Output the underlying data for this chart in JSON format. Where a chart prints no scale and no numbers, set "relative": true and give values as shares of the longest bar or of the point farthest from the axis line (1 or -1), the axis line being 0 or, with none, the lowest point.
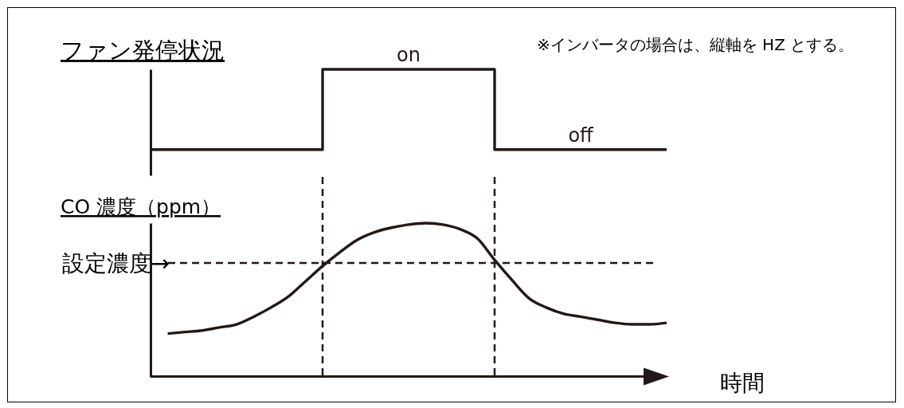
{
  "chart_data": [
    {
      "type": "step",
      "title": "ファン発停状況",
      "categories": [
        null,
        null,
        null,
        null,
        null,
        null,
        null,
        null,
        null,
        null,
        null,
        null,
        null,
        null,
        null,
        null,
        null,
        null,
        null,
        null,
        null,
        null,
        null,
        null,
        null,
        null,
        null,
        null,
        null,
        null,
        null
      ],
      "series": [
        {
          "color": "#231815",
          "values": [
            0,
            0,
            0,
            0,
            0,
            0,
            0,
            0,
            0,
            0,
            1,
            1,
            1,
            1,
            1,
            1,
            1,
            1,
            1,
            1,
            0,
            0,
            0,
            0,
            0,
            0,
            0,
            0,
            0,
            0,
            0
          ]
        }
      ],
      "relative": true,
      "annotations": [
        "※インバータの場合は、縦軸を HZ とする。",
        {
          "text": "on",
          "y": 1
        },
        {
          "text": "off",
          "y": 0
        }
      ]
    },
    {
      "type": "line",
      "title": "CO 濃度（ppm）",
      "xlabel": "時間",
      "categories": [
        null,
        null,
        null,
        null,
        null,
        null,
        null,
        null,
        null,
        null,
        null,
        null,
        null,
        null,
        null,
        null,
        null,
        null,
        null,
        null,
        null,
        null,
        null,
        null,
        null,
        null,
        null,
        null,
        null,
        null,
        null
      ],
      "series": [
        {
          "color": "#231815",
          "values": [
            null,
            0.28,
            0.29,
            0.3,
            0.32,
            0.34,
            0.39,
            0.45,
            0.52,
            0.62,
            0.72,
            0.81,
            0.89,
            0.94,
            0.97,
            0.99,
            1.0,
            0.99,
            0.96,
            0.9,
            0.76,
            0.63,
            0.51,
            0.45,
            0.41,
            0.39,
            0.37,
            0.35,
            0.34,
            0.34,
            0.35
          ]
        }
      ],
      "relative": true,
      "ref_lines": [
        {
          "axis": "y",
          "value": 0.74,
          "label": "設定濃度→",
          "line_style": "dashed",
          "color": "#231815"
        }
      ]
    }
  ]
}
